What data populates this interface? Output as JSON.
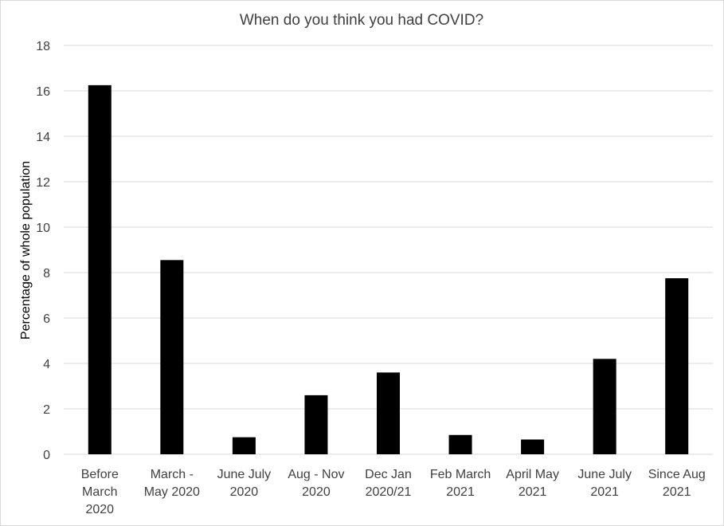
{
  "chart_data": {
    "type": "bar",
    "title": "When do you think you had COVID?",
    "xlabel": "",
    "ylabel": "Percentage of whole population",
    "ylim": [
      0,
      18
    ],
    "y_ticks": [
      "0",
      "2",
      "4",
      "6",
      "8",
      "10",
      "12",
      "14",
      "16",
      "18"
    ],
    "categories": [
      [
        "Before",
        "March",
        "2020"
      ],
      [
        "March -",
        "May 2020"
      ],
      [
        "June July",
        "2020"
      ],
      [
        "Aug - Nov",
        "2020"
      ],
      [
        "Dec Jan",
        "2020/21"
      ],
      [
        "Feb March",
        "2021"
      ],
      [
        "April May",
        "2021"
      ],
      [
        "June July",
        "2021"
      ],
      [
        "Since Aug",
        "2021"
      ]
    ],
    "values": [
      16.25,
      8.55,
      0.75,
      2.6,
      3.6,
      0.85,
      0.65,
      4.2,
      7.75
    ],
    "grid": true,
    "legend": "none",
    "colors": {
      "bar": "#000000",
      "grid": "#d9d9d9",
      "axis": "#d9d9d9"
    }
  }
}
